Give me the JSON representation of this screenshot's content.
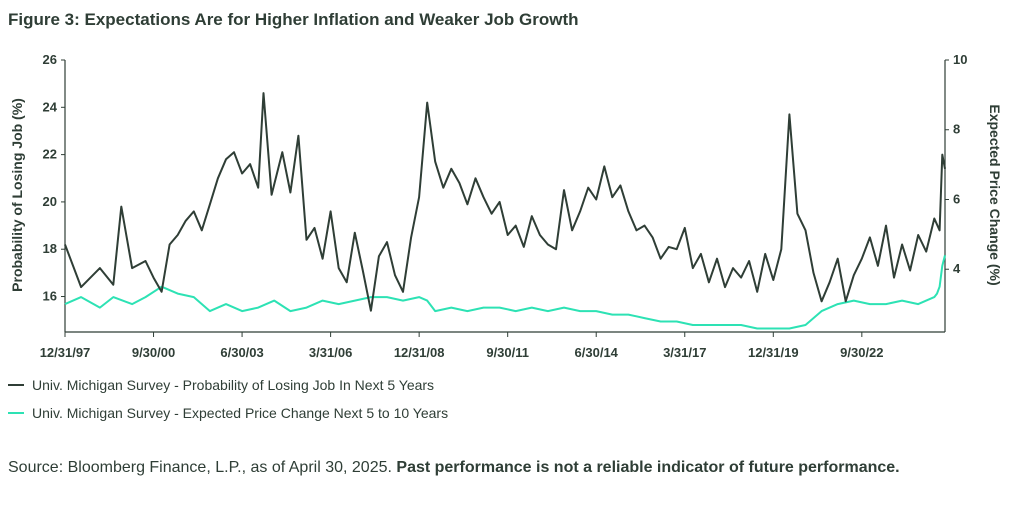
{
  "title": "Figure 3: Expectations Are for Higher Inflation and Weaker Job Growth",
  "source": {
    "text": "Source: Bloomberg Finance, L.P., as of April 30, 2025. ",
    "bold": "Past performance is not a reliable indicator of future performance."
  },
  "colors": {
    "job": "#2f3e36",
    "price": "#2de2b4",
    "axis": "#2f3e36"
  },
  "chart_data": {
    "type": "line",
    "title": "Figure 3: Expectations Are for Higher Inflation and Weaker Job Growth",
    "xlabel": "",
    "ylabel_left": "Probability of Losing Job (%)",
    "ylabel_right": "Expected Price Change (%)",
    "ylim_left": [
      14.5,
      26
    ],
    "yticks_left": [
      16,
      18,
      20,
      22,
      24,
      26
    ],
    "ylim_right": [
      2.2,
      10
    ],
    "yticks_right": [
      4,
      6,
      8,
      10
    ],
    "xticks": [
      "12/31/97",
      "9/30/00",
      "6/30/03",
      "3/31/06",
      "12/31/08",
      "9/30/11",
      "6/30/14",
      "3/31/17",
      "12/31/19",
      "9/30/22"
    ],
    "x_range": [
      "1997-12",
      "2025-04"
    ],
    "grid": false,
    "legend_position": "bottom-left",
    "series": [
      {
        "name": "Univ. Michigan Survey - Probability of Losing Job In Next 5 Years",
        "axis": "left",
        "points": [
          [
            "1997-12",
            18.2
          ],
          [
            "1998-06",
            16.4
          ],
          [
            "1999-01",
            17.2
          ],
          [
            "1999-06",
            16.5
          ],
          [
            "1999-09",
            19.8
          ],
          [
            "2000-01",
            17.2
          ],
          [
            "2000-06",
            17.5
          ],
          [
            "2000-09",
            16.8
          ],
          [
            "2000-12",
            16.2
          ],
          [
            "2001-03",
            18.2
          ],
          [
            "2001-06",
            18.6
          ],
          [
            "2001-09",
            19.2
          ],
          [
            "2001-12",
            19.6
          ],
          [
            "2002-03",
            18.8
          ],
          [
            "2002-06",
            19.9
          ],
          [
            "2002-09",
            21.0
          ],
          [
            "2002-12",
            21.8
          ],
          [
            "2003-03",
            22.1
          ],
          [
            "2003-06",
            21.2
          ],
          [
            "2003-09",
            21.6
          ],
          [
            "2003-12",
            20.6
          ],
          [
            "2004-02",
            24.6
          ],
          [
            "2004-05",
            20.3
          ],
          [
            "2004-09",
            22.1
          ],
          [
            "2004-12",
            20.4
          ],
          [
            "2005-03",
            22.8
          ],
          [
            "2005-06",
            18.4
          ],
          [
            "2005-09",
            18.9
          ],
          [
            "2005-12",
            17.6
          ],
          [
            "2006-03",
            19.6
          ],
          [
            "2006-06",
            17.2
          ],
          [
            "2006-09",
            16.6
          ],
          [
            "2006-12",
            18.7
          ],
          [
            "2007-03",
            17.1
          ],
          [
            "2007-06",
            15.4
          ],
          [
            "2007-09",
            17.7
          ],
          [
            "2007-12",
            18.3
          ],
          [
            "2008-03",
            16.9
          ],
          [
            "2008-06",
            16.2
          ],
          [
            "2008-09",
            18.5
          ],
          [
            "2008-12",
            20.2
          ],
          [
            "2009-03",
            24.2
          ],
          [
            "2009-06",
            21.7
          ],
          [
            "2009-09",
            20.6
          ],
          [
            "2009-12",
            21.4
          ],
          [
            "2010-03",
            20.8
          ],
          [
            "2010-06",
            19.9
          ],
          [
            "2010-09",
            21.0
          ],
          [
            "2010-12",
            20.2
          ],
          [
            "2011-03",
            19.5
          ],
          [
            "2011-06",
            20.0
          ],
          [
            "2011-09",
            18.6
          ],
          [
            "2011-12",
            19.0
          ],
          [
            "2012-03",
            18.1
          ],
          [
            "2012-06",
            19.4
          ],
          [
            "2012-09",
            18.6
          ],
          [
            "2012-12",
            18.2
          ],
          [
            "2013-03",
            18.0
          ],
          [
            "2013-06",
            20.5
          ],
          [
            "2013-09",
            18.8
          ],
          [
            "2013-12",
            19.6
          ],
          [
            "2014-03",
            20.6
          ],
          [
            "2014-06",
            20.1
          ],
          [
            "2014-09",
            21.5
          ],
          [
            "2014-12",
            20.2
          ],
          [
            "2015-03",
            20.7
          ],
          [
            "2015-06",
            19.6
          ],
          [
            "2015-09",
            18.8
          ],
          [
            "2015-12",
            19.0
          ],
          [
            "2016-03",
            18.5
          ],
          [
            "2016-06",
            17.6
          ],
          [
            "2016-09",
            18.1
          ],
          [
            "2016-12",
            18.0
          ],
          [
            "2017-03",
            18.9
          ],
          [
            "2017-06",
            17.2
          ],
          [
            "2017-09",
            17.8
          ],
          [
            "2017-12",
            16.6
          ],
          [
            "2018-03",
            17.6
          ],
          [
            "2018-06",
            16.4
          ],
          [
            "2018-09",
            17.2
          ],
          [
            "2018-12",
            16.8
          ],
          [
            "2019-03",
            17.5
          ],
          [
            "2019-06",
            16.2
          ],
          [
            "2019-09",
            17.8
          ],
          [
            "2019-12",
            16.7
          ],
          [
            "2020-03",
            18.0
          ],
          [
            "2020-06",
            23.7
          ],
          [
            "2020-09",
            19.5
          ],
          [
            "2020-12",
            18.8
          ],
          [
            "2021-03",
            17.0
          ],
          [
            "2021-06",
            15.8
          ],
          [
            "2021-09",
            16.6
          ],
          [
            "2021-12",
            17.6
          ],
          [
            "2022-03",
            15.8
          ],
          [
            "2022-06",
            16.9
          ],
          [
            "2022-09",
            17.6
          ],
          [
            "2022-12",
            18.5
          ],
          [
            "2023-03",
            17.3
          ],
          [
            "2023-06",
            19.0
          ],
          [
            "2023-09",
            16.8
          ],
          [
            "2023-12",
            18.2
          ],
          [
            "2024-03",
            17.1
          ],
          [
            "2024-06",
            18.6
          ],
          [
            "2024-09",
            17.9
          ],
          [
            "2024-12",
            19.3
          ],
          [
            "2025-02",
            18.8
          ],
          [
            "2025-03",
            22.0
          ],
          [
            "2025-04",
            21.4
          ]
        ]
      },
      {
        "name": "Univ. Michigan Survey - Expected Price Change Next 5 to 10 Years",
        "axis": "right",
        "points": [
          [
            "1997-12",
            3.0
          ],
          [
            "1998-06",
            3.2
          ],
          [
            "1999-01",
            2.9
          ],
          [
            "1999-06",
            3.2
          ],
          [
            "2000-01",
            3.0
          ],
          [
            "2000-06",
            3.2
          ],
          [
            "2000-12",
            3.5
          ],
          [
            "2001-06",
            3.3
          ],
          [
            "2001-12",
            3.2
          ],
          [
            "2002-06",
            2.8
          ],
          [
            "2002-12",
            3.0
          ],
          [
            "2003-06",
            2.8
          ],
          [
            "2003-12",
            2.9
          ],
          [
            "2004-06",
            3.1
          ],
          [
            "2004-12",
            2.8
          ],
          [
            "2005-06",
            2.9
          ],
          [
            "2005-12",
            3.1
          ],
          [
            "2006-06",
            3.0
          ],
          [
            "2006-12",
            3.1
          ],
          [
            "2007-06",
            3.2
          ],
          [
            "2007-12",
            3.2
          ],
          [
            "2008-06",
            3.1
          ],
          [
            "2008-12",
            3.2
          ],
          [
            "2009-03",
            3.1
          ],
          [
            "2009-06",
            2.8
          ],
          [
            "2009-12",
            2.9
          ],
          [
            "2010-06",
            2.8
          ],
          [
            "2010-12",
            2.9
          ],
          [
            "2011-06",
            2.9
          ],
          [
            "2011-12",
            2.8
          ],
          [
            "2012-06",
            2.9
          ],
          [
            "2012-12",
            2.8
          ],
          [
            "2013-06",
            2.9
          ],
          [
            "2013-12",
            2.8
          ],
          [
            "2014-06",
            2.8
          ],
          [
            "2014-12",
            2.7
          ],
          [
            "2015-06",
            2.7
          ],
          [
            "2015-12",
            2.6
          ],
          [
            "2016-06",
            2.5
          ],
          [
            "2016-12",
            2.5
          ],
          [
            "2017-06",
            2.4
          ],
          [
            "2017-12",
            2.4
          ],
          [
            "2018-06",
            2.4
          ],
          [
            "2018-12",
            2.4
          ],
          [
            "2019-06",
            2.3
          ],
          [
            "2019-12",
            2.3
          ],
          [
            "2020-06",
            2.3
          ],
          [
            "2020-12",
            2.4
          ],
          [
            "2021-06",
            2.8
          ],
          [
            "2021-12",
            3.0
          ],
          [
            "2022-06",
            3.1
          ],
          [
            "2022-12",
            3.0
          ],
          [
            "2023-06",
            3.0
          ],
          [
            "2023-12",
            3.1
          ],
          [
            "2024-06",
            3.0
          ],
          [
            "2024-12",
            3.2
          ],
          [
            "2025-01",
            3.3
          ],
          [
            "2025-02",
            3.5
          ],
          [
            "2025-03",
            4.1
          ],
          [
            "2025-04",
            4.4
          ]
        ]
      }
    ]
  }
}
